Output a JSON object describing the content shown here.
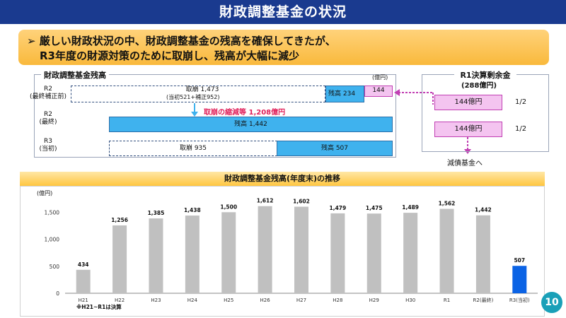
{
  "header": {
    "title": "財政調整基金の状況"
  },
  "callout": {
    "line1": "➢ 厳しい財政状況の中、財政調整基金の残高を確保してきたが、",
    "line2": "R3年度の財源対策のために取崩し、残高が大幅に減少"
  },
  "balance_panel": {
    "title": "財政調整基金残高",
    "unit": "(億円)",
    "rows": [
      {
        "label1": "R2",
        "label2": "(最終補正前)"
      },
      {
        "label1": "R2",
        "label2": "(最終)"
      },
      {
        "label1": "R3",
        "label2": "(当初)"
      }
    ],
    "r2_pre": {
      "drawdown_line1": "取崩 1,473",
      "drawdown_line2": "(当初521+補正952)",
      "balance_label": "残高 234",
      "pink_value": "144"
    },
    "reduction_note": "取崩の縮減等 1,208億円",
    "r2_final": {
      "balance_label": "残高 1,442"
    },
    "r3_initial": {
      "drawdown_label": "取崩 935",
      "balance_label": "残高 507"
    }
  },
  "surplus_panel": {
    "title1": "R1決算剰余金",
    "title2": "(288億円)",
    "box1": "144億円",
    "frac1": "1/2",
    "box2": "144億円",
    "frac2": "1/2",
    "destination": "減債基金へ"
  },
  "chart_header": "財政調整基金残高(年度末)の推移",
  "chart_data": {
    "type": "bar",
    "categories": [
      "H21",
      "H22",
      "H23",
      "H24",
      "H25",
      "H26",
      "H27",
      "H28",
      "H29",
      "H30",
      "R1",
      "R2(最終)",
      "R3(当初)"
    ],
    "values": [
      434,
      1256,
      1385,
      1438,
      1500,
      1612,
      1602,
      1479,
      1475,
      1489,
      1562,
      1442,
      507
    ],
    "ylabel": "(億円)",
    "ylim": [
      0,
      1700
    ],
    "yticks": [
      0,
      500,
      1000,
      1500
    ],
    "ytick_labels": [
      "0",
      "500",
      "1,000",
      "1,500"
    ],
    "data_labels": [
      "434",
      "1,256",
      "1,385",
      "1,438",
      "1,500",
      "1,612",
      "1,602",
      "1,479",
      "1,475",
      "1,489",
      "1,562",
      "1,442",
      "507"
    ],
    "note": "※H21~R1は決算",
    "colors": {
      "default": "#c0c0c0",
      "highlight": "#0b63e5"
    },
    "highlight_index": 12,
    "grid": false
  },
  "page_number": "10"
}
